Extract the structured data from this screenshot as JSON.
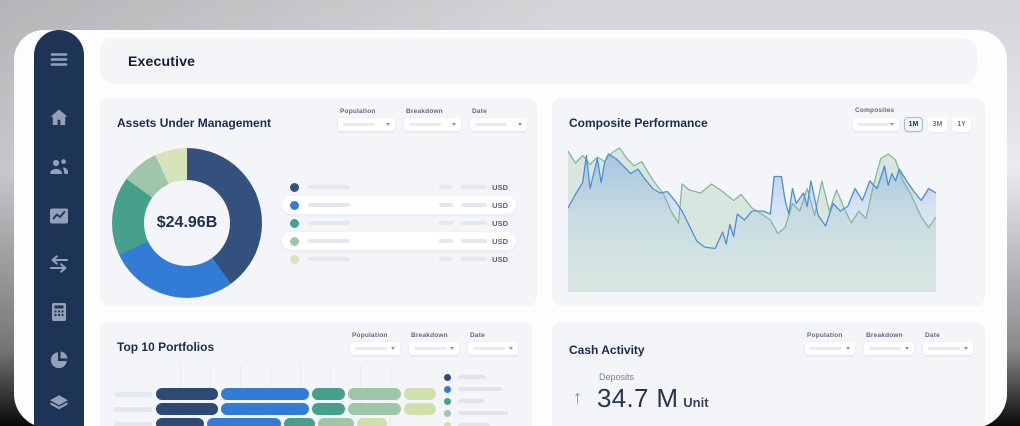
{
  "window": {
    "title": "Executive"
  },
  "sidebar": {
    "bg": "#1e3456",
    "icon_color": "#93a0b8",
    "items": [
      {
        "name": "menu-icon"
      },
      {
        "name": "home-icon"
      },
      {
        "name": "clients-icon"
      },
      {
        "name": "performance-icon"
      },
      {
        "name": "transactions-icon"
      },
      {
        "name": "calculator-icon"
      },
      {
        "name": "allocation-icon"
      },
      {
        "name": "holdings-icon"
      }
    ]
  },
  "filters": {
    "population": "Population",
    "breakdown": "Breakdown",
    "date": "Date"
  },
  "cards": {
    "aum": {
      "title": "Assets Under Management",
      "center_value": "$24.96B",
      "currency_label": "USD",
      "chart_data": {
        "type": "pie",
        "title": "Assets Under Management",
        "center_label": "$24.96B",
        "segments": [
          {
            "color": "#33517c",
            "value": 40
          },
          {
            "color": "#337cd6",
            "value": 28
          },
          {
            "color": "#46a08b",
            "value": 17
          },
          {
            "color": "#9fc6a9",
            "value": 8
          },
          {
            "color": "#d9e3bb",
            "value": 7
          }
        ]
      }
    },
    "composite": {
      "title": "Composite Performance",
      "composites_label": "Composites",
      "range_buttons": [
        "1M",
        "3M",
        "1Y"
      ],
      "selected_range": "1M",
      "chart_data": {
        "type": "area",
        "axes_visible": false,
        "x_range": [
          0,
          100
        ],
        "y_range": [
          0,
          100
        ],
        "series": [
          {
            "name": "composite-green",
            "color": "#86b898",
            "fill": "rgba(157,196,165,0.30)",
            "points": [
              [
                0,
                6
              ],
              [
                2,
                14
              ],
              [
                4,
                9
              ],
              [
                6,
                15
              ],
              [
                8,
                10
              ],
              [
                10,
                13
              ],
              [
                12,
                7
              ],
              [
                14,
                4
              ],
              [
                16,
                11
              ],
              [
                18,
                16
              ],
              [
                20,
                13
              ],
              [
                23,
                25
              ],
              [
                26,
                35
              ],
              [
                28,
                46
              ],
              [
                30,
                54
              ],
              [
                31,
                28
              ],
              [
                33,
                32
              ],
              [
                36,
                34
              ],
              [
                39,
                28
              ],
              [
                42,
                33
              ],
              [
                45,
                39
              ],
              [
                47,
                35
              ],
              [
                50,
                44
              ],
              [
                52,
                47
              ],
              [
                55,
                52
              ],
              [
                57,
                61
              ],
              [
                59,
                57
              ],
              [
                61,
                41
              ],
              [
                63,
                46
              ],
              [
                65,
                31
              ],
              [
                67,
                49
              ],
              [
                69,
                26
              ],
              [
                71,
                46
              ],
              [
                73,
                32
              ],
              [
                75,
                44
              ],
              [
                77,
                54
              ],
              [
                79,
                46
              ],
              [
                81,
                51
              ],
              [
                83,
                29
              ],
              [
                85,
                11
              ],
              [
                87,
                8
              ],
              [
                89,
                12
              ],
              [
                91,
                26
              ],
              [
                93,
                34
              ],
              [
                96,
                50
              ],
              [
                98,
                57
              ],
              [
                100,
                50
              ]
            ]
          },
          {
            "name": "composite-blue",
            "color": "#4e8fd3",
            "fill": "gradient-blue",
            "points": [
              [
                0,
                44
              ],
              [
                2,
                35
              ],
              [
                4,
                27
              ],
              [
                5,
                9
              ],
              [
                6,
                31
              ],
              [
                8,
                11
              ],
              [
                9,
                27
              ],
              [
                10,
                13
              ],
              [
                11,
                8
              ],
              [
                13,
                11
              ],
              [
                15,
                16
              ],
              [
                17,
                21
              ],
              [
                19,
                18
              ],
              [
                21,
                25
              ],
              [
                23,
                31
              ],
              [
                25,
                34
              ],
              [
                27,
                33
              ],
              [
                29,
                39
              ],
              [
                31,
                46
              ],
              [
                33,
                56
              ],
              [
                35,
                66
              ],
              [
                37,
                70
              ],
              [
                40,
                71
              ],
              [
                42,
                60
              ],
              [
                43,
                68
              ],
              [
                44,
                55
              ],
              [
                45,
                63
              ],
              [
                46,
                48
              ],
              [
                48,
                52
              ],
              [
                50,
                46
              ],
              [
                53,
                46
              ],
              [
                55,
                48
              ],
              [
                56,
                23
              ],
              [
                58,
                23
              ],
              [
                59,
                39
              ],
              [
                60,
                48
              ],
              [
                61,
                31
              ],
              [
                62,
                41
              ],
              [
                64,
                34
              ],
              [
                65,
                43
              ],
              [
                66,
                26
              ],
              [
                68,
                49
              ],
              [
                70,
                56
              ],
              [
                72,
                41
              ],
              [
                74,
                46
              ],
              [
                76,
                43
              ],
              [
                78,
                31
              ],
              [
                80,
                39
              ],
              [
                82,
                26
              ],
              [
                84,
                31
              ],
              [
                86,
                16
              ],
              [
                87,
                29
              ],
              [
                88,
                21
              ],
              [
                89,
                26
              ],
              [
                90,
                18
              ],
              [
                92,
                26
              ],
              [
                94,
                33
              ],
              [
                96,
                39
              ],
              [
                98,
                31
              ],
              [
                100,
                34
              ]
            ]
          }
        ]
      }
    },
    "top10": {
      "title": "Top 10 Portfolios",
      "chart_data": {
        "type": "bar",
        "orientation": "horizontal",
        "stacked": true,
        "grid": true,
        "legend_position": "right",
        "colors": [
          "#2c4a74",
          "#337cd6",
          "#46a08b",
          "#9fc6a9",
          "#cfe0ad"
        ],
        "rows": [
          {
            "segments": [
              62,
              88,
              33,
              53,
              32
            ]
          },
          {
            "segments": [
              62,
              88,
              33,
              53,
              32
            ]
          },
          {
            "segments": [
              48,
              74,
              31,
              36,
              30
            ]
          }
        ]
      }
    },
    "cash": {
      "title": "Cash Activity",
      "metric_label": "Deposits",
      "metric_value": "34.7 M",
      "metric_unit": "Unit",
      "trend": "up",
      "trend_color": "#57a65a",
      "trend_glyph": "↑"
    }
  }
}
